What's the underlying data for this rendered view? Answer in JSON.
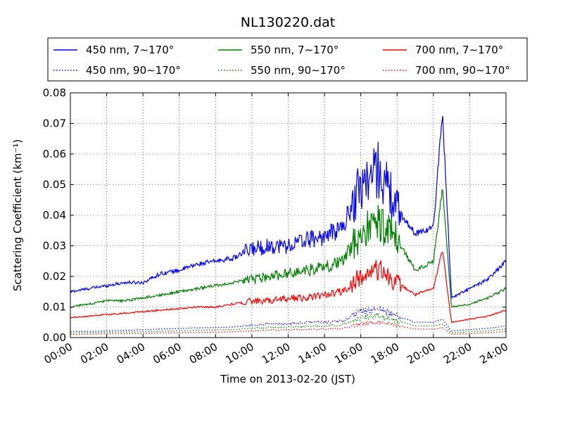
{
  "chart_data": {
    "type": "line",
    "title": "NL130220.dat",
    "xlabel": "Time on 2013-02-20 (JST)",
    "ylabel": "Scattering Coefficient (km⁻¹)",
    "xlim": [
      "00:00",
      "24:00"
    ],
    "ylim": [
      0,
      0.08
    ],
    "grid": true,
    "legend_position": "top",
    "x_ticks": [
      "00:00",
      "02:00",
      "04:00",
      "06:00",
      "08:00",
      "10:00",
      "12:00",
      "14:00",
      "16:00",
      "18:00",
      "20:00",
      "22:00",
      "24:00"
    ],
    "y_ticks": [
      "0.00",
      "0.01",
      "0.02",
      "0.03",
      "0.04",
      "0.05",
      "0.06",
      "0.07",
      "0.08"
    ],
    "x_hours": [
      0,
      1,
      2,
      3,
      4,
      5,
      6,
      7,
      8,
      9,
      10,
      11,
      12,
      13,
      14,
      15,
      16,
      17,
      18,
      19,
      20,
      20.5,
      21,
      22,
      23,
      24
    ],
    "series": [
      {
        "name": "450 nm, 7∼170°",
        "color": "#0000ff",
        "style": "solid",
        "values": [
          0.015,
          0.016,
          0.017,
          0.018,
          0.018,
          0.021,
          0.022,
          0.024,
          0.025,
          0.026,
          0.029,
          0.03,
          0.03,
          0.032,
          0.033,
          0.036,
          0.05,
          0.055,
          0.042,
          0.034,
          0.036,
          0.074,
          0.013,
          0.016,
          0.019,
          0.025
        ]
      },
      {
        "name": "550 nm, 7∼170°",
        "color": "#008000",
        "style": "solid",
        "values": [
          0.01,
          0.011,
          0.012,
          0.012,
          0.013,
          0.014,
          0.015,
          0.016,
          0.017,
          0.018,
          0.019,
          0.02,
          0.021,
          0.022,
          0.023,
          0.025,
          0.034,
          0.038,
          0.032,
          0.022,
          0.025,
          0.049,
          0.01,
          0.011,
          0.013,
          0.016
        ]
      },
      {
        "name": "700 nm, 7∼170°",
        "color": "#ff0000",
        "style": "solid",
        "values": [
          0.0065,
          0.007,
          0.0075,
          0.008,
          0.0085,
          0.009,
          0.0095,
          0.01,
          0.01,
          0.011,
          0.012,
          0.012,
          0.013,
          0.013,
          0.014,
          0.015,
          0.02,
          0.022,
          0.018,
          0.014,
          0.016,
          0.029,
          0.005,
          0.006,
          0.007,
          0.009
        ]
      },
      {
        "name": "450 nm, 90∼170°",
        "color": "#0000ff",
        "style": "dotted",
        "values": [
          0.002,
          0.002,
          0.0022,
          0.0024,
          0.0025,
          0.0028,
          0.003,
          0.0032,
          0.0033,
          0.0035,
          0.004,
          0.0045,
          0.0045,
          0.005,
          0.005,
          0.0055,
          0.0085,
          0.0095,
          0.007,
          0.005,
          0.005,
          0.006,
          0.0022,
          0.0026,
          0.003,
          0.0038
        ]
      },
      {
        "name": "550 nm, 90∼170°",
        "color": "#008000",
        "style": "dotted",
        "values": [
          0.0015,
          0.0016,
          0.0017,
          0.0018,
          0.0019,
          0.0021,
          0.0022,
          0.0024,
          0.0025,
          0.0026,
          0.003,
          0.0034,
          0.0034,
          0.0037,
          0.0038,
          0.0042,
          0.0065,
          0.0072,
          0.0055,
          0.0038,
          0.0038,
          0.0045,
          0.0016,
          0.0019,
          0.0022,
          0.0028
        ]
      },
      {
        "name": "700 nm, 90∼170°",
        "color": "#ff0000",
        "style": "dotted",
        "values": [
          0.001,
          0.0011,
          0.0012,
          0.0013,
          0.0013,
          0.0015,
          0.0016,
          0.0017,
          0.0018,
          0.0019,
          0.0022,
          0.0025,
          0.0025,
          0.0027,
          0.0028,
          0.003,
          0.0045,
          0.005,
          0.004,
          0.0028,
          0.0028,
          0.0032,
          0.0011,
          0.0013,
          0.0016,
          0.002
        ]
      }
    ]
  }
}
